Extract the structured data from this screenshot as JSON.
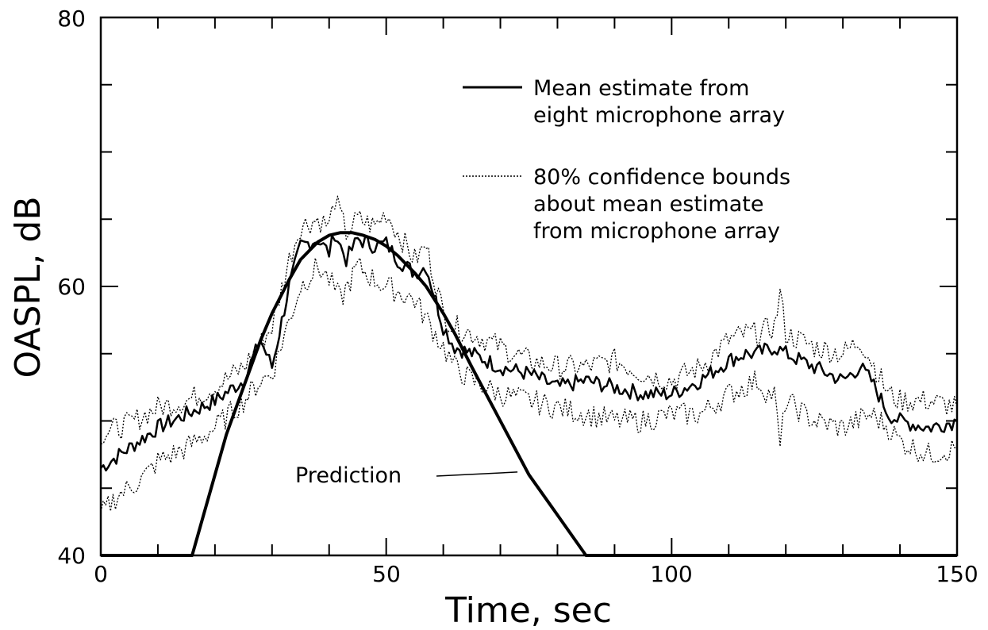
{
  "chart_data": {
    "type": "line",
    "title": "",
    "xlabel": "Time, sec",
    "ylabel": "OASPL, dB",
    "xlim": [
      0,
      150
    ],
    "ylim": [
      40,
      80
    ],
    "x_ticks": [
      0,
      50,
      100,
      150
    ],
    "y_ticks": [
      40,
      60,
      80
    ],
    "x_tick_labels": [
      "0",
      "50",
      "100",
      "150"
    ],
    "y_tick_labels": [
      "40",
      "60",
      "80"
    ],
    "grid": false,
    "legend_position": "top-right",
    "legend": [
      {
        "label_lines": [
          "Mean estimate from",
          "eight microphone array"
        ],
        "style": "solid"
      },
      {
        "label_lines": [
          "80% confidence bounds",
          "about mean estimate",
          "from microphone array"
        ],
        "style": "dotted"
      }
    ],
    "annotations": [
      {
        "text": "Prediction",
        "points_to": [
          73,
          46.2
        ]
      }
    ],
    "series": [
      {
        "name": "Mean estimate from eight microphone array",
        "style": "solid",
        "x": [
          0,
          5,
          10,
          15,
          20,
          25,
          28,
          30,
          33,
          35,
          38,
          40,
          41,
          43,
          45,
          48,
          50,
          52,
          55,
          57,
          60,
          62,
          65,
          70,
          75,
          80,
          85,
          90,
          95,
          100,
          105,
          110,
          113,
          115,
          118,
          120,
          125,
          130,
          133,
          135,
          138,
          140,
          145,
          150
        ],
        "y": [
          46.5,
          48.0,
          49.5,
          50.5,
          51.5,
          53.0,
          56.0,
          54.0,
          60.0,
          63.0,
          63.5,
          62.5,
          64.0,
          62.0,
          63.5,
          63.0,
          63.2,
          62.0,
          61.0,
          61.5,
          57.0,
          55.5,
          55.0,
          54.0,
          53.5,
          52.5,
          53.0,
          52.5,
          52.0,
          52.0,
          53.0,
          54.5,
          55.0,
          55.0,
          55.5,
          55.0,
          54.0,
          53.0,
          54.0,
          53.0,
          50.5,
          50.0,
          49.5,
          50.0
        ]
      },
      {
        "name": "80% confidence bound (upper)",
        "style": "dotted",
        "x": [
          0,
          5,
          10,
          15,
          20,
          25,
          30,
          33,
          35,
          38,
          40,
          41,
          43,
          45,
          48,
          50,
          52,
          55,
          57,
          60,
          62,
          65,
          70,
          75,
          80,
          85,
          90,
          95,
          100,
          105,
          110,
          113,
          115,
          118,
          119,
          120,
          125,
          130,
          133,
          135,
          138,
          140,
          145,
          150
        ],
        "y": [
          49.0,
          49.8,
          51.0,
          51.5,
          52.5,
          54.0,
          57.0,
          62.0,
          64.5,
          65.0,
          64.5,
          66.5,
          64.0,
          65.0,
          64.5,
          65.5,
          64.0,
          62.0,
          63.0,
          58.0,
          57.0,
          56.5,
          55.5,
          54.5,
          54.0,
          54.0,
          54.5,
          53.5,
          53.0,
          54.0,
          56.0,
          56.5,
          56.5,
          57.0,
          59.5,
          56.5,
          55.5,
          55.0,
          56.0,
          54.5,
          52.0,
          51.5,
          51.5,
          51.0
        ]
      },
      {
        "name": "80% confidence bound (lower)",
        "style": "dotted",
        "x": [
          0,
          3,
          5,
          8,
          10,
          15,
          20,
          25,
          28,
          30,
          33,
          35,
          38,
          40,
          42,
          45,
          48,
          50,
          55,
          60,
          62,
          65,
          70,
          75,
          80,
          85,
          90,
          95,
          100,
          105,
          110,
          115,
          117,
          118,
          119,
          120,
          125,
          130,
          135,
          138,
          140,
          145,
          150
        ],
        "y": [
          43.0,
          44.5,
          45.0,
          46.0,
          47.0,
          48.0,
          49.5,
          51.5,
          53.0,
          53.5,
          57.5,
          60.0,
          61.5,
          60.5,
          59.0,
          61.5,
          60.5,
          60.0,
          59.0,
          55.5,
          54.0,
          53.0,
          52.0,
          51.5,
          51.0,
          50.5,
          50.0,
          50.0,
          50.5,
          50.5,
          52.0,
          53.0,
          52.0,
          52.0,
          48.0,
          51.5,
          50.0,
          49.5,
          50.5,
          49.5,
          48.5,
          47.5,
          48.0
        ]
      },
      {
        "name": "Prediction",
        "style": "solid-thick",
        "x": [
          0,
          16,
          18,
          20,
          22,
          25,
          28,
          30,
          33,
          35,
          38,
          40,
          42,
          44,
          46,
          48,
          50,
          52,
          55,
          57,
          60,
          62,
          65,
          70,
          75,
          80,
          85,
          150
        ],
        "y": [
          40,
          40,
          43.0,
          46.0,
          49.0,
          52.5,
          56.0,
          58.0,
          60.5,
          62.0,
          63.3,
          63.8,
          64.0,
          64.0,
          63.8,
          63.5,
          63.0,
          62.3,
          61.0,
          60.0,
          58.0,
          56.5,
          54.0,
          50.0,
          46.0,
          43.0,
          40,
          40
        ]
      }
    ]
  }
}
